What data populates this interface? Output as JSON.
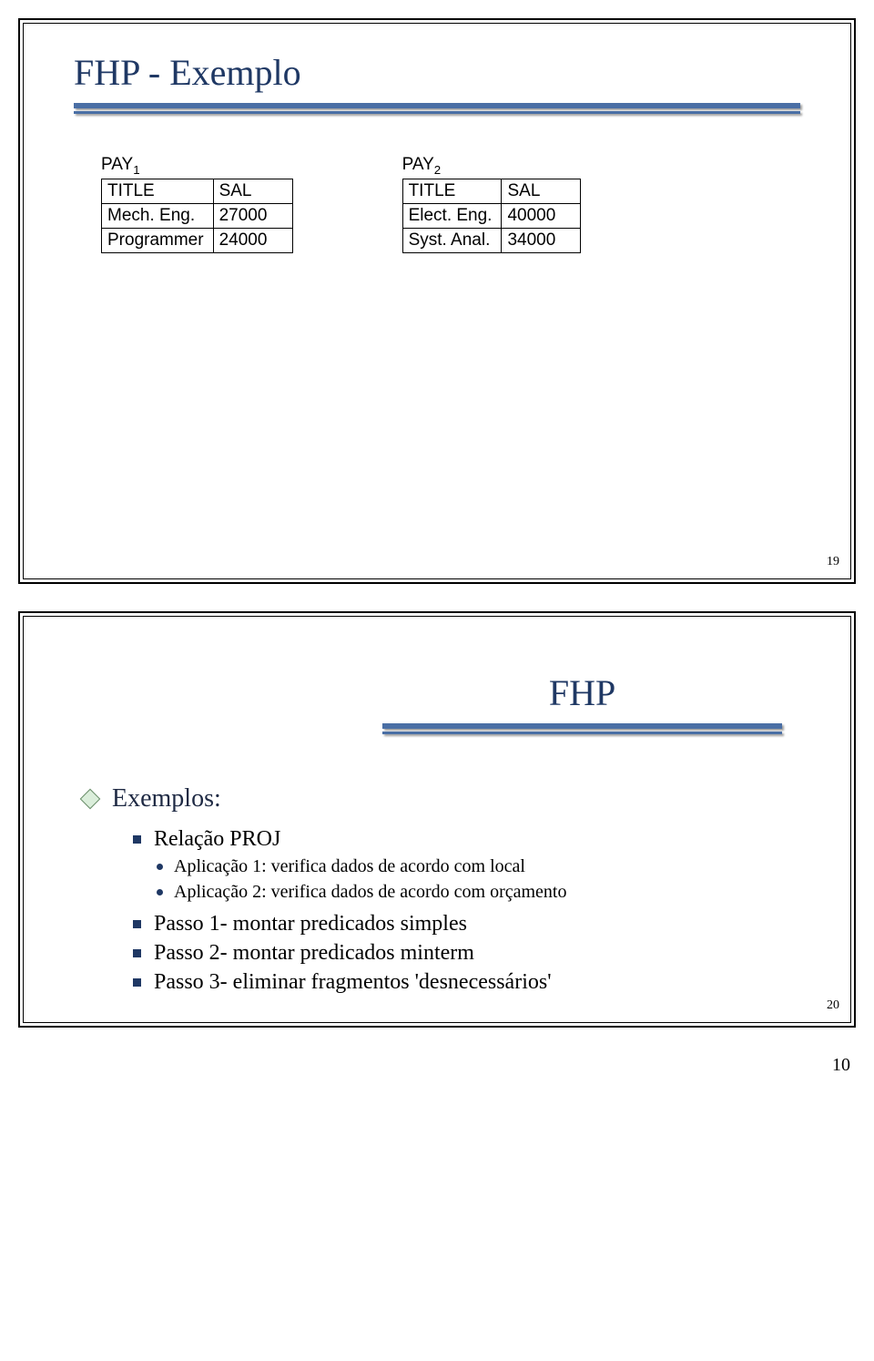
{
  "colors": {
    "title_color": "#1f3864",
    "sep_color": "#4a6fa5",
    "bullet_color": "#1f3864",
    "diamond_fill": "#dbeedb",
    "diamond_stroke": "#6b8e6b",
    "border_color": "#000000",
    "background": "#ffffff"
  },
  "slide1": {
    "title": "FHP - Exemplo",
    "table1": {
      "name_prefix": "PAY",
      "name_sub": "1",
      "columns": [
        "TITLE",
        "SAL"
      ],
      "rows": [
        [
          "Mech. Eng.",
          "27000"
        ],
        [
          "Programmer",
          "24000"
        ]
      ]
    },
    "table2": {
      "name_prefix": "PAY",
      "name_sub": "2",
      "columns": [
        "TITLE",
        "SAL"
      ],
      "rows": [
        [
          "Elect. Eng.",
          "40000"
        ],
        [
          "Syst. Anal.",
          "34000"
        ]
      ]
    },
    "slide_number": "19"
  },
  "slide2": {
    "title": "FHP",
    "lvl1": "Exemplos:",
    "lvl2_a": "Relação PROJ",
    "lvl3_a1": "Aplicação 1: verifica dados de acordo com local",
    "lvl3_a2": "Aplicação 2: verifica dados de acordo com orçamento",
    "lvl2_b": "Passo 1- montar predicados simples",
    "lvl2_c": "Passo 2- montar predicados minterm",
    "lvl2_d": "Passo 3- eliminar fragmentos 'desnecessários'",
    "slide_number": "20"
  },
  "page_number": "10"
}
